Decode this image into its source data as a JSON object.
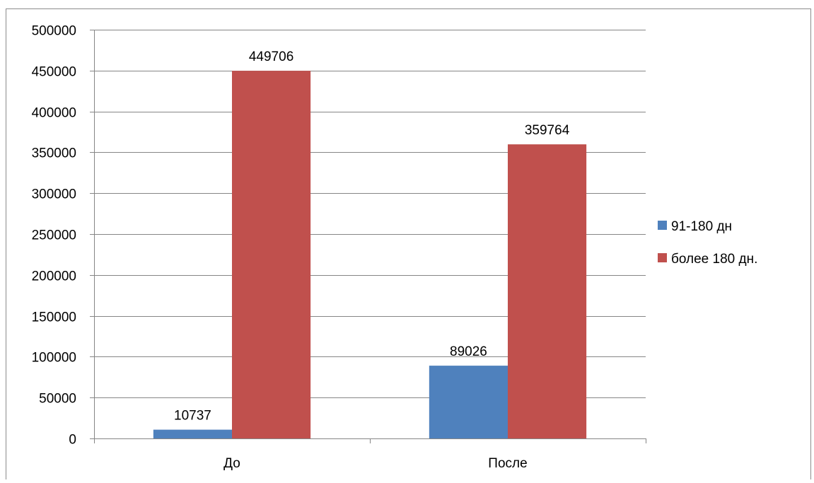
{
  "chart_data": {
    "type": "bar",
    "categories": [
      "До",
      "После"
    ],
    "series": [
      {
        "name": "91-180 дн",
        "color": "#4F81BD",
        "values": [
          10737,
          89026
        ]
      },
      {
        "name": "более 180 дн.",
        "color": "#C0504D",
        "values": [
          449706,
          359764
        ]
      }
    ],
    "ylim": [
      0,
      500000
    ],
    "yticks": [
      0,
      50000,
      100000,
      150000,
      200000,
      250000,
      300000,
      350000,
      400000,
      450000,
      500000
    ],
    "grid": true,
    "legend": "right",
    "data_labels": true
  }
}
